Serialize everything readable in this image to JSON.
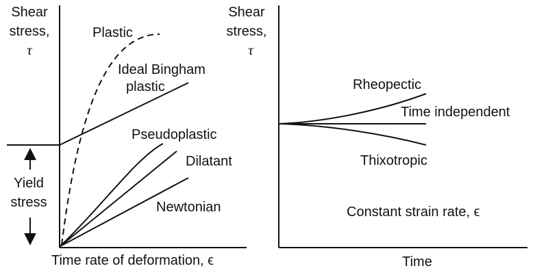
{
  "left_panel": {
    "y_axis_label": [
      "Shear",
      "stress,",
      "τ"
    ],
    "x_axis_label": "Time rate of deformation, ϵ",
    "yield_stress_label": [
      "Yield",
      "stress"
    ],
    "curves": [
      {
        "key": "plastic",
        "label": "Plastic",
        "style": "dashed"
      },
      {
        "key": "ideal_bingham",
        "label": [
          "Ideal Bingham",
          "plastic"
        ],
        "style": "solid"
      },
      {
        "key": "pseudoplastic",
        "label": "Pseudoplastic",
        "style": "solid"
      },
      {
        "key": "dilatant",
        "label": "Dilatant",
        "style": "solid"
      },
      {
        "key": "newtonian",
        "label": "Newtonian",
        "style": "solid"
      }
    ]
  },
  "right_panel": {
    "y_axis_label": [
      "Shear",
      "stress,",
      "τ"
    ],
    "x_axis_label": "Time",
    "note": "Constant strain rate, ϵ",
    "curves": [
      {
        "key": "rheopectic",
        "label": "Rheopectic",
        "trend": "increasing"
      },
      {
        "key": "time_independent",
        "label": "Time independent",
        "trend": "constant"
      },
      {
        "key": "thixotropic",
        "label": "Thixotropic",
        "trend": "decreasing"
      }
    ]
  }
}
